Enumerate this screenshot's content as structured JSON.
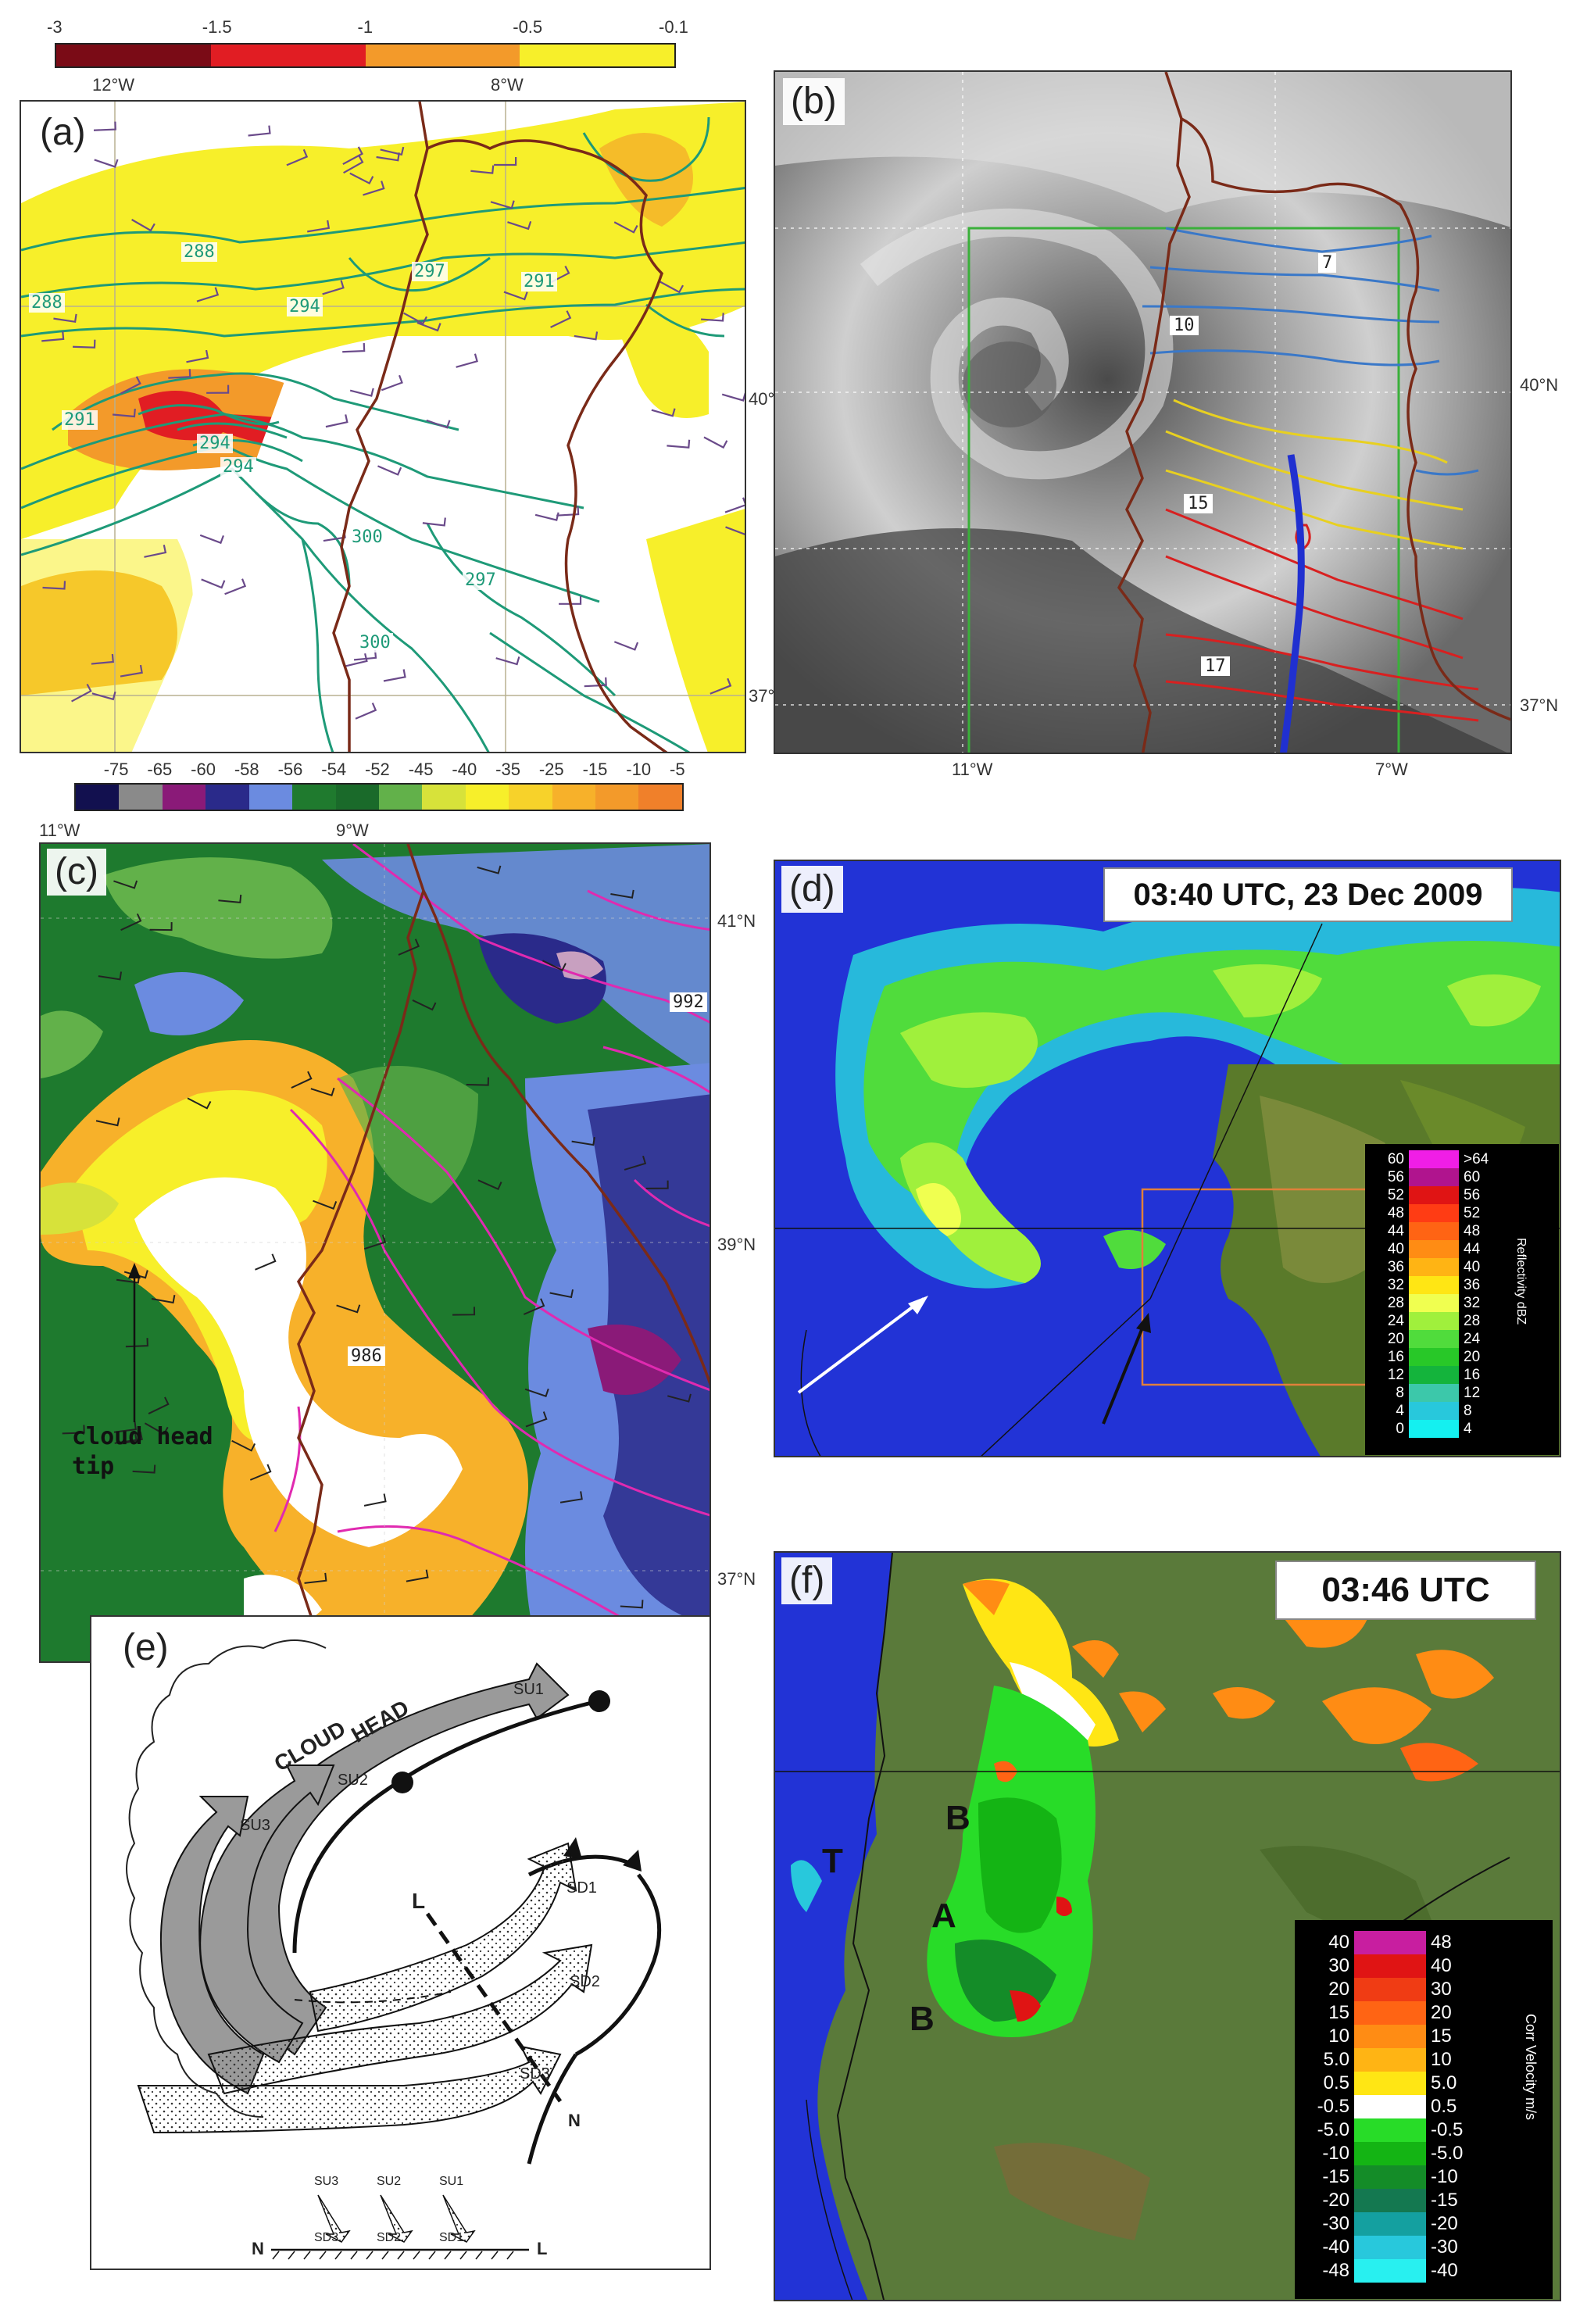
{
  "panels": {
    "a": {
      "label": "(a)",
      "top_scale_ticks": [
        "-3",
        "-1.5",
        "-1",
        "-0.5",
        "-0.1"
      ],
      "top_scale_colors": [
        "#7a0b16",
        "#e11d23",
        "#f39a2a",
        "#f7ef2a"
      ],
      "lon_labels": [
        "12°W",
        "8°W"
      ],
      "lat_labels": [
        "40°N",
        "37°N"
      ],
      "contour_labels": [
        "288",
        "288",
        "291",
        "294",
        "294",
        "291",
        "294",
        "297",
        "300",
        "297",
        "300"
      ],
      "bottom_scale_ticks": [
        "-75",
        "-65",
        "-60",
        "-58",
        "-56",
        "-54",
        "-52",
        "-45",
        "-40",
        "-35",
        "-25",
        "-15",
        "-10",
        "-5"
      ],
      "bottom_scale_colors": [
        "#12104f",
        "#8a8a8a",
        "#8a1a78",
        "#2a2a8a",
        "#6b8be0",
        "#1f7a2e",
        "#1a6a2a",
        "#62b14a",
        "#d7e23a",
        "#f7ef2a",
        "#f7d22a",
        "#f7b12a",
        "#f39a2a",
        "#f0802a"
      ]
    },
    "b": {
      "label": "(b)",
      "lon_labels": [
        "11°W",
        "7°W"
      ],
      "lat_labels": [
        "40°N",
        "37°N"
      ],
      "contour_labels": [
        "7",
        "10",
        "15",
        "17"
      ]
    },
    "c": {
      "label": "(c)",
      "lon_labels": [
        "11°W",
        "9°W"
      ],
      "lat_labels": [
        "41°N",
        "39°N",
        "37°N"
      ],
      "contour_labels": [
        "992",
        "986"
      ],
      "annotation": "cloud head\ntip"
    },
    "d": {
      "label": "(d)",
      "time": "03:40 UTC, 23 Dec 2009",
      "legend_title": "Reflectivity dBZ",
      "legend_rows": [
        {
          "l": "60",
          "r": ">64",
          "c": "#f01ee6"
        },
        {
          "l": "56",
          "r": "60",
          "c": "#b0148e"
        },
        {
          "l": "52",
          "r": "56",
          "c": "#e01414"
        },
        {
          "l": "48",
          "r": "52",
          "c": "#ff3c14"
        },
        {
          "l": "44",
          "r": "48",
          "c": "#ff6414"
        },
        {
          "l": "40",
          "r": "44",
          "c": "#ff8c14"
        },
        {
          "l": "36",
          "r": "40",
          "c": "#ffb414"
        },
        {
          "l": "32",
          "r": "36",
          "c": "#ffe614"
        },
        {
          "l": "28",
          "r": "32",
          "c": "#f0ff50"
        },
        {
          "l": "24",
          "r": "28",
          "c": "#a0f03c"
        },
        {
          "l": "20",
          "r": "24",
          "c": "#50dc3c"
        },
        {
          "l": "16",
          "r": "20",
          "c": "#28c828"
        },
        {
          "l": "12",
          "r": "16",
          "c": "#14b43c"
        },
        {
          "l": "8",
          "r": "12",
          "c": "#3cc8aa"
        },
        {
          "l": "4",
          "r": "8",
          "c": "#28c8dc"
        },
        {
          "l": "0",
          "r": "4",
          "c": "#14f0f0"
        }
      ]
    },
    "e": {
      "label": "(e)",
      "cloud_head": "CLOUD",
      "cloud_head2": "HEAD",
      "su": [
        "SU1",
        "SU2",
        "SU3"
      ],
      "sd": [
        "SD1",
        "SD2",
        "SD3"
      ],
      "axis_l": "L",
      "axis_n": "N",
      "bottom_su": [
        "SU3",
        "SU2",
        "SU1"
      ],
      "bottom_sd": [
        "SD3",
        "SD2",
        "SD1"
      ],
      "bottom_n": "N",
      "bottom_l": "L"
    },
    "f": {
      "label": "(f)",
      "time": "03:46 UTC",
      "letters": {
        "t": "T",
        "b1": "B",
        "a": "A",
        "b2": "B"
      },
      "legend_title": "Corr Velocity m/s",
      "legend_rows": [
        {
          "l": "40",
          "r": "48",
          "c": "#c81ea0"
        },
        {
          "l": "30",
          "r": "40",
          "c": "#e01414"
        },
        {
          "l": "20",
          "r": "30",
          "c": "#f03c14"
        },
        {
          "l": "15",
          "r": "20",
          "c": "#ff6414"
        },
        {
          "l": "10",
          "r": "15",
          "c": "#ff8c14"
        },
        {
          "l": "5.0",
          "r": "10",
          "c": "#ffb414"
        },
        {
          "l": "0.5",
          "r": "5.0",
          "c": "#ffe614"
        },
        {
          "l": "-0.5",
          "r": "0.5",
          "c": "#ffffff"
        },
        {
          "l": "-5.0",
          "r": "-0.5",
          "c": "#28dc28"
        },
        {
          "l": "-10",
          "r": "-5.0",
          "c": "#14b414"
        },
        {
          "l": "-15",
          "r": "-10",
          "c": "#148c28"
        },
        {
          "l": "-20",
          "r": "-15",
          "c": "#147850"
        },
        {
          "l": "-30",
          "r": "-20",
          "c": "#14a0a0"
        },
        {
          "l": "-40",
          "r": "-30",
          "c": "#28c8dc"
        },
        {
          "l": "-48",
          "r": "-40",
          "c": "#28f0f0"
        }
      ]
    }
  }
}
